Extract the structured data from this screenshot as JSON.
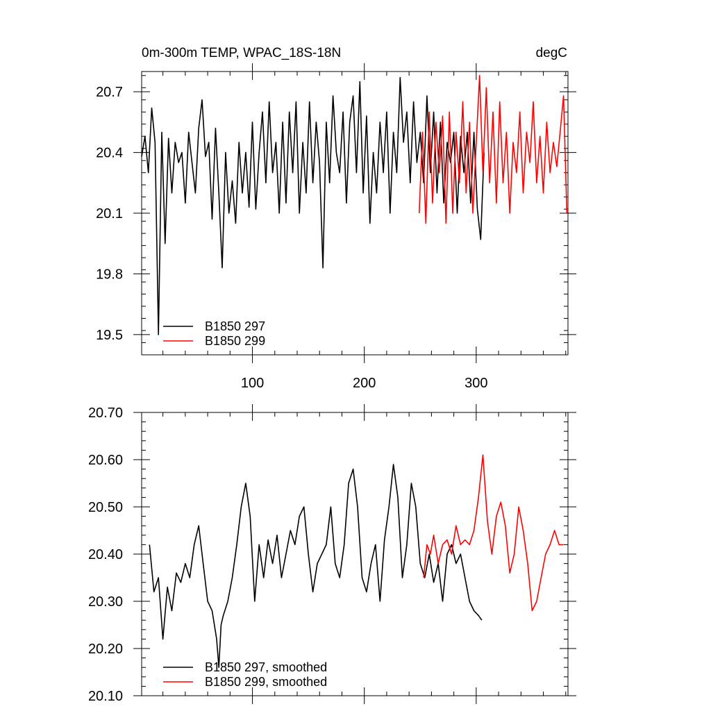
{
  "chart_data": [
    {
      "type": "line",
      "title_left": "0m-300m TEMP, WPAC_18S-18N",
      "title_right": "degC",
      "xlabel": "",
      "ylabel": "",
      "xlim": [
        1,
        382
      ],
      "ylim": [
        19.4,
        20.8
      ],
      "xticks": [
        100,
        200,
        300
      ],
      "xtick_labels": [
        "100",
        "200",
        "300"
      ],
      "yticks": [
        19.5,
        19.8,
        20.1,
        20.4,
        20.7
      ],
      "ytick_labels": [
        "19.5",
        "19.8",
        "20.1",
        "20.4",
        "20.7"
      ],
      "legend_position": "bottom-left",
      "series": [
        {
          "name": "B1850 297",
          "color": "#000000",
          "x": [
            1,
            4,
            7,
            10,
            13,
            16,
            19,
            22,
            25,
            28,
            31,
            34,
            37,
            40,
            43,
            46,
            49,
            52,
            55,
            58,
            61,
            64,
            67,
            70,
            73,
            76,
            79,
            82,
            85,
            88,
            91,
            94,
            97,
            100,
            103,
            106,
            109,
            112,
            115,
            118,
            121,
            124,
            127,
            130,
            133,
            136,
            139,
            142,
            145,
            148,
            151,
            154,
            157,
            160,
            163,
            166,
            169,
            172,
            175,
            178,
            181,
            184,
            187,
            190,
            193,
            196,
            199,
            202,
            205,
            208,
            211,
            214,
            217,
            220,
            223,
            226,
            229,
            232,
            235,
            238,
            241,
            244,
            247,
            250,
            253,
            256,
            259,
            262,
            265,
            268,
            271,
            274,
            277,
            280,
            283,
            286,
            289,
            292,
            295,
            298,
            301,
            304,
            307
          ],
          "values": [
            20.38,
            20.48,
            20.3,
            20.62,
            20.45,
            19.5,
            20.5,
            19.95,
            20.47,
            20.2,
            20.45,
            20.35,
            20.4,
            20.15,
            20.5,
            20.35,
            20.2,
            20.52,
            20.66,
            20.38,
            20.45,
            20.07,
            20.52,
            20.2,
            19.83,
            20.4,
            20.1,
            20.26,
            20.05,
            20.45,
            20.2,
            20.4,
            20.13,
            20.55,
            20.12,
            20.4,
            20.6,
            20.25,
            20.65,
            20.3,
            20.45,
            20.1,
            20.55,
            20.15,
            20.6,
            20.3,
            20.65,
            20.1,
            20.45,
            20.2,
            20.65,
            20.25,
            20.55,
            20.35,
            19.83,
            20.55,
            20.25,
            20.68,
            20.4,
            20.3,
            20.6,
            20.15,
            20.55,
            20.68,
            20.3,
            20.75,
            20.2,
            20.58,
            20.05,
            20.4,
            20.2,
            20.55,
            20.3,
            20.6,
            20.1,
            20.5,
            20.3,
            20.77,
            20.45,
            20.6,
            20.25,
            20.65,
            20.35,
            20.5,
            20.25,
            20.68,
            20.3,
            20.6,
            20.2,
            20.55,
            20.15,
            20.45,
            20.35,
            20.5,
            20.1,
            20.48,
            20.3,
            20.5,
            20.15,
            20.5,
            20.12,
            19.97,
            20.4
          ]
        },
        {
          "name": "B1850 299",
          "color": "#ff0000",
          "x": [
            249,
            252,
            255,
            258,
            261,
            264,
            267,
            270,
            273,
            276,
            279,
            282,
            285,
            288,
            291,
            294,
            297,
            300,
            303,
            306,
            309,
            312,
            315,
            318,
            321,
            324,
            327,
            330,
            333,
            336,
            339,
            342,
            345,
            348,
            351,
            354,
            357,
            360,
            363,
            366,
            369,
            372,
            375,
            378,
            381
          ],
          "values": [
            20.1,
            20.5,
            20.05,
            20.6,
            20.15,
            20.55,
            20.3,
            20.58,
            20.05,
            20.6,
            20.1,
            20.5,
            20.25,
            20.65,
            20.2,
            20.55,
            20.1,
            20.45,
            20.78,
            20.3,
            20.72,
            20.25,
            20.6,
            20.15,
            20.65,
            20.25,
            20.5,
            20.1,
            20.45,
            20.3,
            20.6,
            20.2,
            20.5,
            20.35,
            20.65,
            20.25,
            20.48,
            20.2,
            20.55,
            20.3,
            20.45,
            20.33,
            20.5,
            20.68,
            20.1
          ]
        }
      ]
    },
    {
      "type": "line",
      "title_left": "",
      "title_right": "",
      "xlabel": "",
      "ylabel": "",
      "xlim": [
        1,
        382
      ],
      "ylim": [
        20.1,
        20.7
      ],
      "xticks": [
        100,
        200,
        300
      ],
      "xtick_labels": [],
      "yticks": [
        20.1,
        20.2,
        20.3,
        20.4,
        20.5,
        20.6,
        20.7
      ],
      "ytick_labels": [
        "20.10",
        "20.20",
        "20.30",
        "20.40",
        "20.50",
        "20.60",
        "20.70"
      ],
      "legend_position": "bottom-left",
      "series": [
        {
          "name": "B1850 297, smoothed",
          "color": "#000000",
          "x": [
            8,
            12,
            16,
            20,
            24,
            28,
            32,
            36,
            40,
            44,
            48,
            52,
            56,
            60,
            64,
            68,
            70,
            72,
            74,
            78,
            82,
            86,
            90,
            94,
            98,
            102,
            106,
            110,
            114,
            118,
            122,
            126,
            130,
            134,
            138,
            142,
            146,
            150,
            154,
            158,
            162,
            166,
            170,
            174,
            178,
            182,
            186,
            190,
            194,
            198,
            202,
            206,
            210,
            214,
            218,
            222,
            226,
            230,
            234,
            238,
            242,
            246,
            250,
            254,
            258,
            262,
            266,
            270,
            274,
            278,
            282,
            286,
            290,
            294,
            298,
            302,
            305
          ],
          "values": [
            20.42,
            20.32,
            20.35,
            20.22,
            20.33,
            20.28,
            20.36,
            20.34,
            20.38,
            20.35,
            20.42,
            20.46,
            20.38,
            20.3,
            20.28,
            20.22,
            20.16,
            20.25,
            20.27,
            20.3,
            20.35,
            20.42,
            20.5,
            20.55,
            20.48,
            20.3,
            20.42,
            20.35,
            20.43,
            20.38,
            20.44,
            20.35,
            20.4,
            20.45,
            20.42,
            20.48,
            20.5,
            20.4,
            20.32,
            20.38,
            20.4,
            20.42,
            20.5,
            20.38,
            20.35,
            20.42,
            20.55,
            20.58,
            20.5,
            20.35,
            20.32,
            20.38,
            20.42,
            20.3,
            20.43,
            20.5,
            20.59,
            20.52,
            20.35,
            20.42,
            20.55,
            20.5,
            20.38,
            20.35,
            20.4,
            20.34,
            20.38,
            20.3,
            20.4,
            20.42,
            20.38,
            20.4,
            20.35,
            20.3,
            20.28,
            20.27,
            20.26
          ]
        },
        {
          "name": "B1850 299, smoothed",
          "color": "#ff0000",
          "x": [
            253,
            256,
            259,
            262,
            266,
            270,
            274,
            278,
            282,
            286,
            290,
            294,
            298,
            302,
            306,
            310,
            314,
            318,
            322,
            326,
            330,
            334,
            338,
            342,
            346,
            350,
            354,
            358,
            362,
            366,
            370,
            374,
            378
          ],
          "values": [
            20.35,
            20.42,
            20.4,
            20.44,
            20.38,
            20.42,
            20.43,
            20.4,
            20.46,
            20.42,
            20.43,
            20.42,
            20.45,
            20.52,
            20.61,
            20.47,
            20.4,
            20.48,
            20.51,
            20.46,
            20.36,
            20.4,
            20.5,
            20.45,
            20.38,
            20.28,
            20.3,
            20.35,
            20.4,
            20.42,
            20.45,
            20.42,
            20.42
          ]
        }
      ]
    }
  ]
}
